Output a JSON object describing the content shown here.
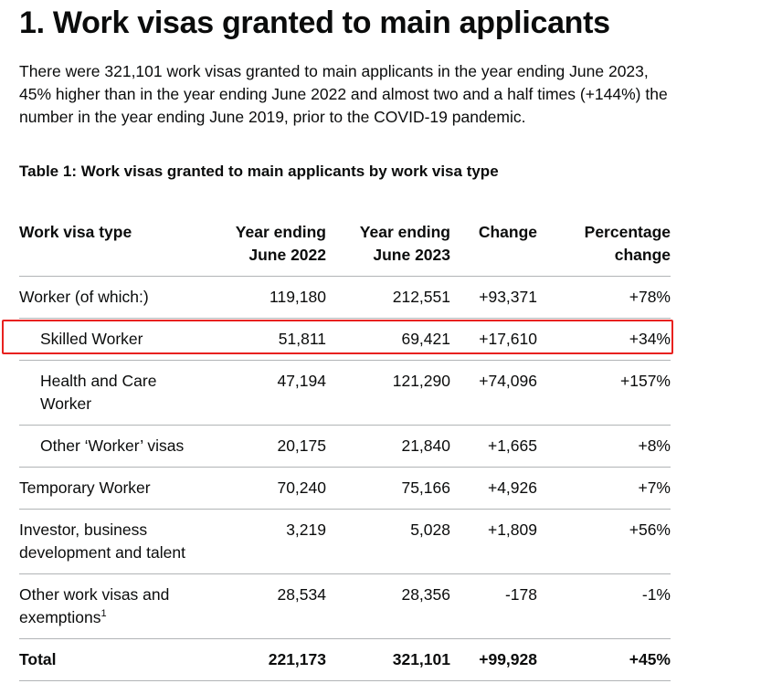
{
  "heading": "1. Work visas granted to main applicants",
  "intro": "There were 321,101 work visas granted to main applicants in the year ending June 2023, 45% higher than in the year ending June 2022 and almost two and a half times (+144%) the number in the year ending June 2019, prior to the COVID-19 pandemic.",
  "table": {
    "caption": "Table 1: Work visas granted to main applicants by work visa type",
    "headers": {
      "type": "Work visa type",
      "y2022_line1": "Year ending",
      "y2022_line2": "June 2022",
      "y2023_line1": "Year ending",
      "y2023_line2": "June 2023",
      "change": "Change",
      "pct_line1": "Percentage",
      "pct_line2": "change"
    },
    "rows": [
      {
        "type": "Worker (of which:)",
        "y2022": "119,180",
        "y2023": "212,551",
        "change": "+93,371",
        "pct": "+78%"
      },
      {
        "type": "Skilled Worker",
        "y2022": "51,811",
        "y2023": "69,421",
        "change": "+17,610",
        "pct": "+34%"
      },
      {
        "type": "Health and Care Worker",
        "y2022": "47,194",
        "y2023": "121,290",
        "change": "+74,096",
        "pct": "+157%"
      },
      {
        "type": "Other ‘Worker’ visas",
        "y2022": "20,175",
        "y2023": "21,840",
        "change": "+1,665",
        "pct": "+8%"
      },
      {
        "type": "Temporary Worker",
        "y2022": "70,240",
        "y2023": "75,166",
        "change": "+4,926",
        "pct": "+7%"
      },
      {
        "type": "Investor, business development and talent",
        "y2022": "3,219",
        "y2023": "5,028",
        "change": "+1,809",
        "pct": "+56%"
      },
      {
        "type": "Other work visas and exemptions",
        "footnote": "1",
        "y2022": "28,534",
        "y2023": "28,356",
        "change": "-178",
        "pct": "-1%"
      },
      {
        "type": "Total",
        "y2022": "221,173",
        "y2023": "321,101",
        "change": "+99,928",
        "pct": "+45%"
      }
    ]
  }
}
